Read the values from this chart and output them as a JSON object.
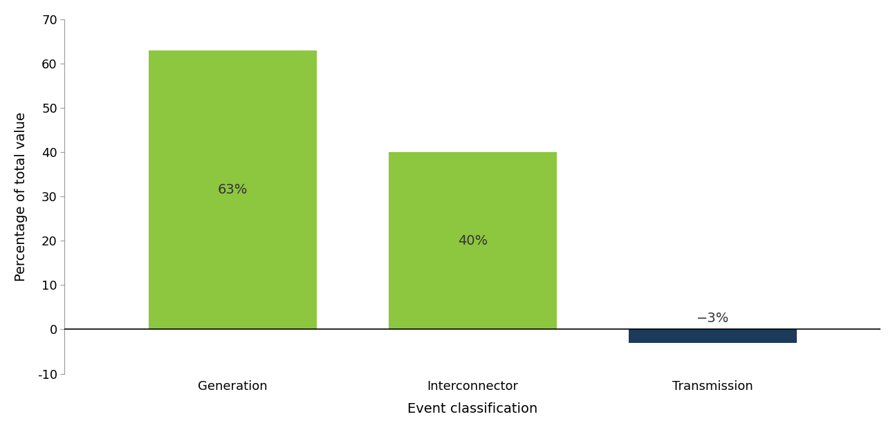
{
  "categories": [
    "Generation",
    "Interconnector",
    "Transmission"
  ],
  "values": [
    63,
    40,
    -3
  ],
  "bar_colors": [
    "#8dc63f",
    "#8dc63f",
    "#1b3a5c"
  ],
  "bar_labels": [
    "63%",
    "40%",
    "−3%"
  ],
  "ylabel": "Percentage of total value",
  "xlabel": "Event classification",
  "ylim": [
    -10,
    70
  ],
  "yticks": [
    -10,
    0,
    10,
    20,
    30,
    40,
    50,
    60,
    70
  ],
  "label_fontsize": 14,
  "tick_fontsize": 13,
  "bar_label_fontsize": 14,
  "background_color": "#ffffff",
  "bar_width": 0.7
}
